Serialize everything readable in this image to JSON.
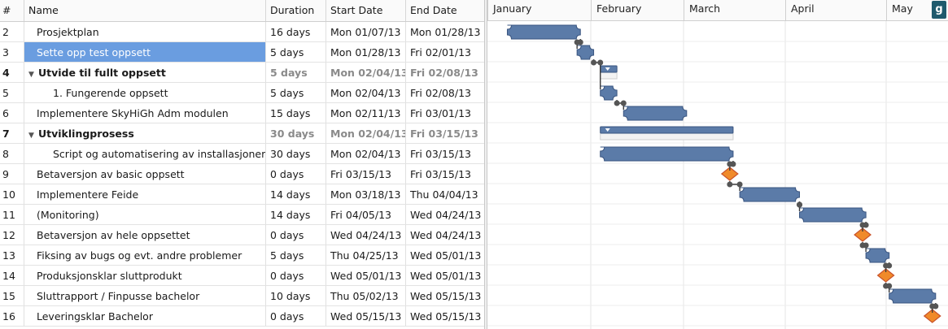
{
  "columns": {
    "num": "#",
    "name": "Name",
    "duration": "Duration",
    "start": "Start Date",
    "end": "End Date"
  },
  "months": [
    "January",
    "February",
    "March",
    "April",
    "May"
  ],
  "logo_text": "g",
  "rows": [
    {
      "num": "2",
      "name": "Prosjektplan",
      "duration": "16 days",
      "start": "Mon 01/07/13",
      "end": "Mon 01/28/13",
      "indent": 1,
      "summary": false,
      "selected": false
    },
    {
      "num": "3",
      "name": "Sette opp test oppsett",
      "duration": "5 days",
      "start": "Mon 01/28/13",
      "end": "Fri 02/01/13",
      "indent": 1,
      "summary": false,
      "selected": true
    },
    {
      "num": "4",
      "name": "Utvide til fullt oppsett",
      "duration": "5 days",
      "start": "Mon 02/04/13",
      "end": "Fri 02/08/13",
      "indent": 0,
      "summary": true,
      "selected": false
    },
    {
      "num": "5",
      "name": "1. Fungerende oppsett",
      "duration": "5 days",
      "start": "Mon 02/04/13",
      "end": "Fri 02/08/13",
      "indent": 2,
      "summary": false,
      "selected": false
    },
    {
      "num": "6",
      "name": "Implementere SkyHiGh Adm modulen",
      "duration": "15 days",
      "start": "Mon 02/11/13",
      "end": "Fri 03/01/13",
      "indent": 1,
      "summary": false,
      "selected": false
    },
    {
      "num": "7",
      "name": "Utviklingprosess",
      "duration": "30 days",
      "start": "Mon 02/04/13",
      "end": "Fri 03/15/13",
      "indent": 0,
      "summary": true,
      "selected": false
    },
    {
      "num": "8",
      "name": "Script og automatisering av installasjoner",
      "duration": "30 days",
      "start": "Mon 02/04/13",
      "end": "Fri 03/15/13",
      "indent": 2,
      "summary": false,
      "selected": false
    },
    {
      "num": "9",
      "name": "Betaversjon av basic oppsett",
      "duration": "0 days",
      "start": "Fri 03/15/13",
      "end": "Fri 03/15/13",
      "indent": 1,
      "summary": false,
      "selected": false
    },
    {
      "num": "10",
      "name": "Implementere Feide",
      "duration": "14 days",
      "start": "Mon 03/18/13",
      "end": "Thu 04/04/13",
      "indent": 1,
      "summary": false,
      "selected": false
    },
    {
      "num": "11",
      "name": "(Monitoring)",
      "duration": "14 days",
      "start": "Fri 04/05/13",
      "end": "Wed 04/24/13",
      "indent": 1,
      "summary": false,
      "selected": false
    },
    {
      "num": "12",
      "name": "Betaversjon av hele oppsettet",
      "duration": "0 days",
      "start": "Wed 04/24/13",
      "end": "Wed 04/24/13",
      "indent": 1,
      "summary": false,
      "selected": false
    },
    {
      "num": "13",
      "name": "Fiksing av bugs og evt. andre problemer",
      "duration": "5 days",
      "start": "Thu 04/25/13",
      "end": "Wed 05/01/13",
      "indent": 1,
      "summary": false,
      "selected": false
    },
    {
      "num": "14",
      "name": "Produksjonsklar sluttprodukt",
      "duration": "0 days",
      "start": "Wed 05/01/13",
      "end": "Wed 05/01/13",
      "indent": 1,
      "summary": false,
      "selected": false
    },
    {
      "num": "15",
      "name": "Sluttrapport / Finpusse bachelor",
      "duration": "10 days",
      "start": "Thu 05/02/13",
      "end": "Wed 05/15/13",
      "indent": 1,
      "summary": false,
      "selected": false
    },
    {
      "num": "16",
      "name": "Leveringsklar Bachelor",
      "duration": "0 days",
      "start": "Wed 05/15/13",
      "end": "Wed 05/15/13",
      "indent": 1,
      "summary": false,
      "selected": false
    }
  ],
  "colors": {
    "bar": "#5b7ba8",
    "bar_border": "#3a5580",
    "milestone": "#f08a2a",
    "milestone_border": "#c9522a",
    "selection": "#6a9de0"
  }
}
